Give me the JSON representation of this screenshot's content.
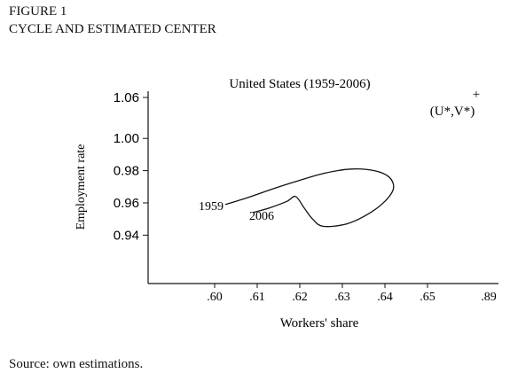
{
  "figure": {
    "label": "FIGURE 1",
    "title": "CYCLE AND ESTIMATED CENTER",
    "source": "Source: own estimations."
  },
  "chart_data": {
    "type": "line",
    "title": "United States (1959-2006)",
    "xlabel": "Workers' share",
    "ylabel": "Employment rate",
    "x_ticks": [
      {
        "value": 0.6,
        "label": ".60"
      },
      {
        "value": 0.61,
        "label": ".61"
      },
      {
        "value": 0.62,
        "label": ".62"
      },
      {
        "value": 0.63,
        "label": ".63"
      },
      {
        "value": 0.64,
        "label": ".64"
      },
      {
        "value": 0.65,
        "label": ".65"
      }
    ],
    "x_break_label": ".89",
    "y_ticks": [
      {
        "value": 0.94,
        "label": "0.94"
      },
      {
        "value": 0.96,
        "label": "0.96"
      },
      {
        "value": 0.98,
        "label": "0.98"
      },
      {
        "value": 1.0,
        "label": "1.00"
      },
      {
        "value": 1.06,
        "label": "1.06"
      }
    ],
    "series": [
      {
        "points": [
          [
            0.6025,
            0.959
          ],
          [
            0.608,
            0.9635
          ],
          [
            0.614,
            0.969
          ],
          [
            0.62,
            0.974
          ],
          [
            0.626,
            0.9785
          ],
          [
            0.632,
            0.981
          ],
          [
            0.6375,
            0.98
          ],
          [
            0.641,
            0.976
          ],
          [
            0.642,
            0.969
          ],
          [
            0.64,
            0.961
          ],
          [
            0.636,
            0.953
          ],
          [
            0.631,
            0.947
          ],
          [
            0.6255,
            0.9455
          ],
          [
            0.623,
            0.95
          ],
          [
            0.621,
            0.957
          ],
          [
            0.619,
            0.964
          ],
          [
            0.617,
            0.961
          ],
          [
            0.613,
            0.957
          ],
          [
            0.609,
            0.954
          ]
        ],
        "start_label": "1959",
        "end_label": "2006"
      }
    ],
    "center": {
      "label": "(U*,V*)",
      "marker": "+",
      "x": 0.89,
      "y": 1.06
    },
    "grid": false
  }
}
